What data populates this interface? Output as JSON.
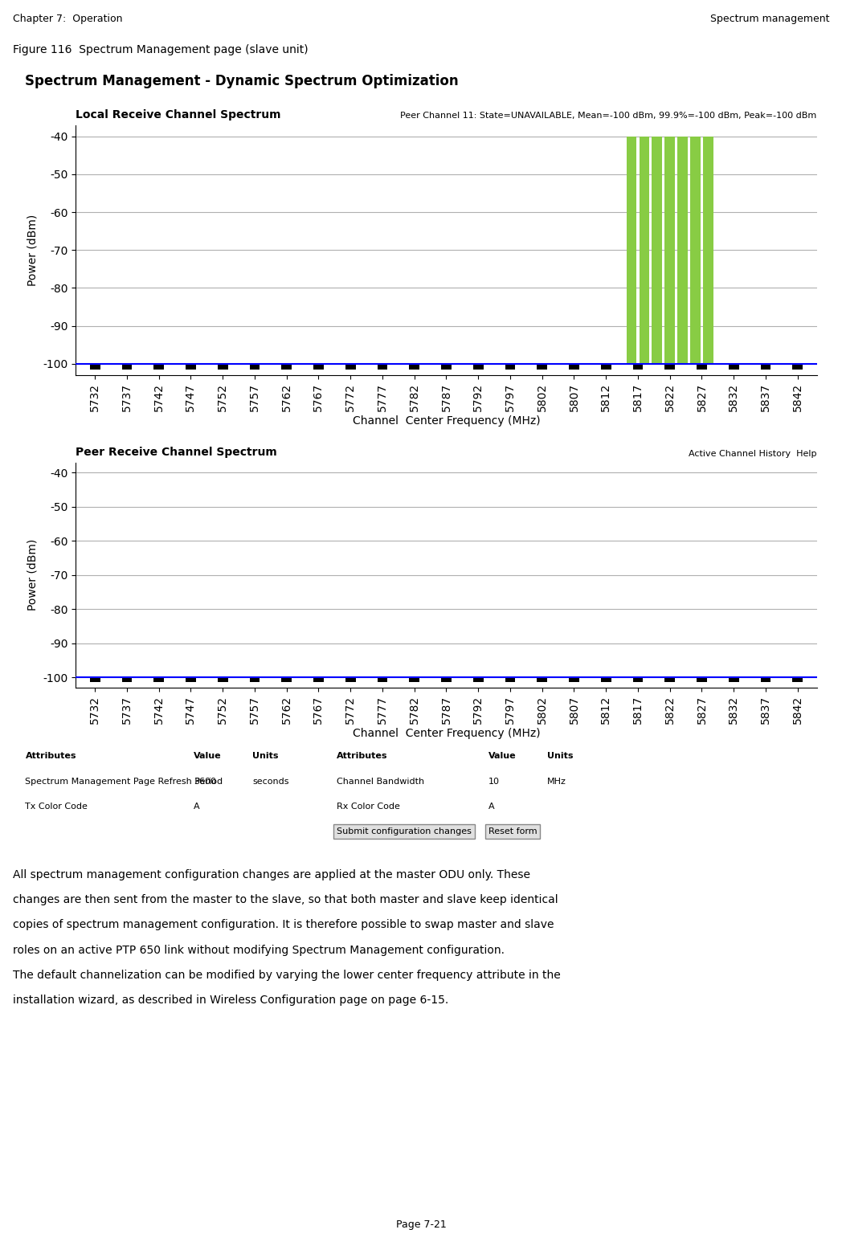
{
  "title": "Spectrum Management - Dynamic Spectrum Optimization",
  "annotations": [
    [
      "Chapter 7:  Operation",
      "Spectrum management"
    ],
    [
      "Figure 116  Spectrum Management page (slave unit)"
    ],
    [
      "Attributes",
      "Value",
      "Units",
      "Attributes",
      "Value",
      "Units"
    ],
    [
      "Spectrum Management Page Refresh Period",
      "3600",
      "seconds",
      "Channel Bandwidth",
      "10",
      "MHz"
    ],
    [
      "Tx Color Code",
      "A",
      "Rx Color Code",
      "A"
    ],
    [
      "Submit configuration changes",
      "Reset form"
    ],
    [
      "All spectrum management configuration changes are applied at the master ODU only. These"
    ],
    [
      "changes are then sent from the master to the slave, so that both master and slave keep identical"
    ],
    [
      "copies of spectrum management configuration. It is therefore possible to swap master and slave"
    ],
    [
      "roles on an active PTP 650 link without modifying Spectrum Management configuration."
    ],
    [
      "The default channelization can be modified by varying the lower center frequency attribute in the"
    ],
    [
      "installation wizard, as described in Wireless Configuration page on page 6-15."
    ],
    [
      "Page 7-21"
    ]
  ],
  "chart_data": [
    {
      "type": "bar",
      "title": "Local Receive Channel Spectrum",
      "annotations": [
        "Peer Channel 11: State=UNAVAILABLE, Mean=-100 dBm, 99.9%=-100 dBm, Peak=-100 dBm"
      ],
      "x_label": "Channel  Center Frequency (MHz)",
      "y_label": "Power (dBm)",
      "series": [
        {
          "type": "bar",
          "color": "#88cc44",
          "x": [
            5816,
            5818,
            5820,
            5822,
            5824,
            5826,
            5828
          ],
          "bottom": [
            -100,
            -100,
            -100,
            -100,
            -100,
            -100,
            -100
          ],
          "values": [
            -40,
            -40,
            -40,
            -40,
            -40,
            -40,
            -40
          ]
        },
        {
          "type": "line",
          "color": "#0000ff",
          "x": [
            5729,
            5845
          ],
          "values": [
            -100,
            -100
          ]
        },
        {
          "type": "bar",
          "color": "#000000",
          "x": [
            5732,
            5737,
            5742,
            5747,
            5752,
            5757,
            5762,
            5767,
            5772,
            5777,
            5782,
            5787,
            5792,
            5797,
            5802,
            5807,
            5812,
            5817,
            5822,
            5827,
            5832,
            5837,
            5842
          ],
          "bottom": [
            -101.5,
            -101.5,
            -101.5,
            -101.5,
            -101.5,
            -101.5,
            -101.5,
            -101.5,
            -101.5,
            -101.5,
            -101.5,
            -101.5,
            -101.5,
            -101.5,
            -101.5,
            -101.5,
            -101.5,
            -101.5,
            -101.5,
            -101.5,
            -101.5,
            -101.5,
            -101.5
          ],
          "values": [
            -100,
            -100,
            -100,
            -100,
            -100,
            -100,
            -100,
            -100,
            -100,
            -100,
            -100,
            -100,
            -100,
            -100,
            -100,
            -100,
            -100,
            -100,
            -100,
            -100,
            -100,
            -100,
            -100
          ]
        }
      ],
      "xlim": [
        5729,
        5845
      ],
      "xticks": [
        5732,
        5737,
        5742,
        5747,
        5752,
        5757,
        5762,
        5767,
        5772,
        5777,
        5782,
        5787,
        5792,
        5797,
        5802,
        5807,
        5812,
        5817,
        5822,
        5827,
        5832,
        5837,
        5842
      ],
      "ylim": [
        -103,
        -37
      ],
      "yticks": [
        -40,
        -50,
        -60,
        -70,
        -80,
        -90,
        -100
      ],
      "grid": true
    },
    {
      "type": "bar",
      "title": "Peer Receive Channel Spectrum",
      "annotations": [
        "Active Channel History  Help"
      ],
      "x_label": "Channel  Center Frequency (MHz)",
      "y_label": "Power (dBm)",
      "series": [
        {
          "type": "line",
          "color": "#0000ff",
          "x": [
            5729,
            5845
          ],
          "values": [
            -100,
            -100
          ]
        },
        {
          "type": "bar",
          "color": "#000000",
          "x": [
            5732,
            5737,
            5742,
            5747,
            5752,
            5757,
            5762,
            5767,
            5772,
            5777,
            5782,
            5787,
            5792,
            5797,
            5802,
            5807,
            5812,
            5817,
            5822,
            5827,
            5832,
            5837,
            5842
          ],
          "bottom": [
            -101.5,
            -101.5,
            -101.5,
            -101.5,
            -101.5,
            -101.5,
            -101.5,
            -101.5,
            -101.5,
            -101.5,
            -101.5,
            -101.5,
            -101.5,
            -101.5,
            -101.5,
            -101.5,
            -101.5,
            -101.5,
            -101.5,
            -101.5,
            -101.5,
            -101.5,
            -101.5
          ],
          "values": [
            -100,
            -100,
            -100,
            -100,
            -100,
            -100,
            -100,
            -100,
            -100,
            -100,
            -100,
            -100,
            -100,
            -100,
            -100,
            -100,
            -100,
            -100,
            -100,
            -100,
            -100,
            -100,
            -100
          ]
        }
      ],
      "xlim": [
        5729,
        5845
      ],
      "xticks": [
        5732,
        5737,
        5742,
        5747,
        5752,
        5757,
        5762,
        5767,
        5772,
        5777,
        5782,
        5787,
        5792,
        5797,
        5802,
        5807,
        5812,
        5817,
        5822,
        5827,
        5832,
        5837,
        5842
      ],
      "ylim": [
        -103,
        -37
      ],
      "yticks": [
        -40,
        -50,
        -60,
        -70,
        -80,
        -90,
        -100
      ],
      "grid": true
    }
  ]
}
